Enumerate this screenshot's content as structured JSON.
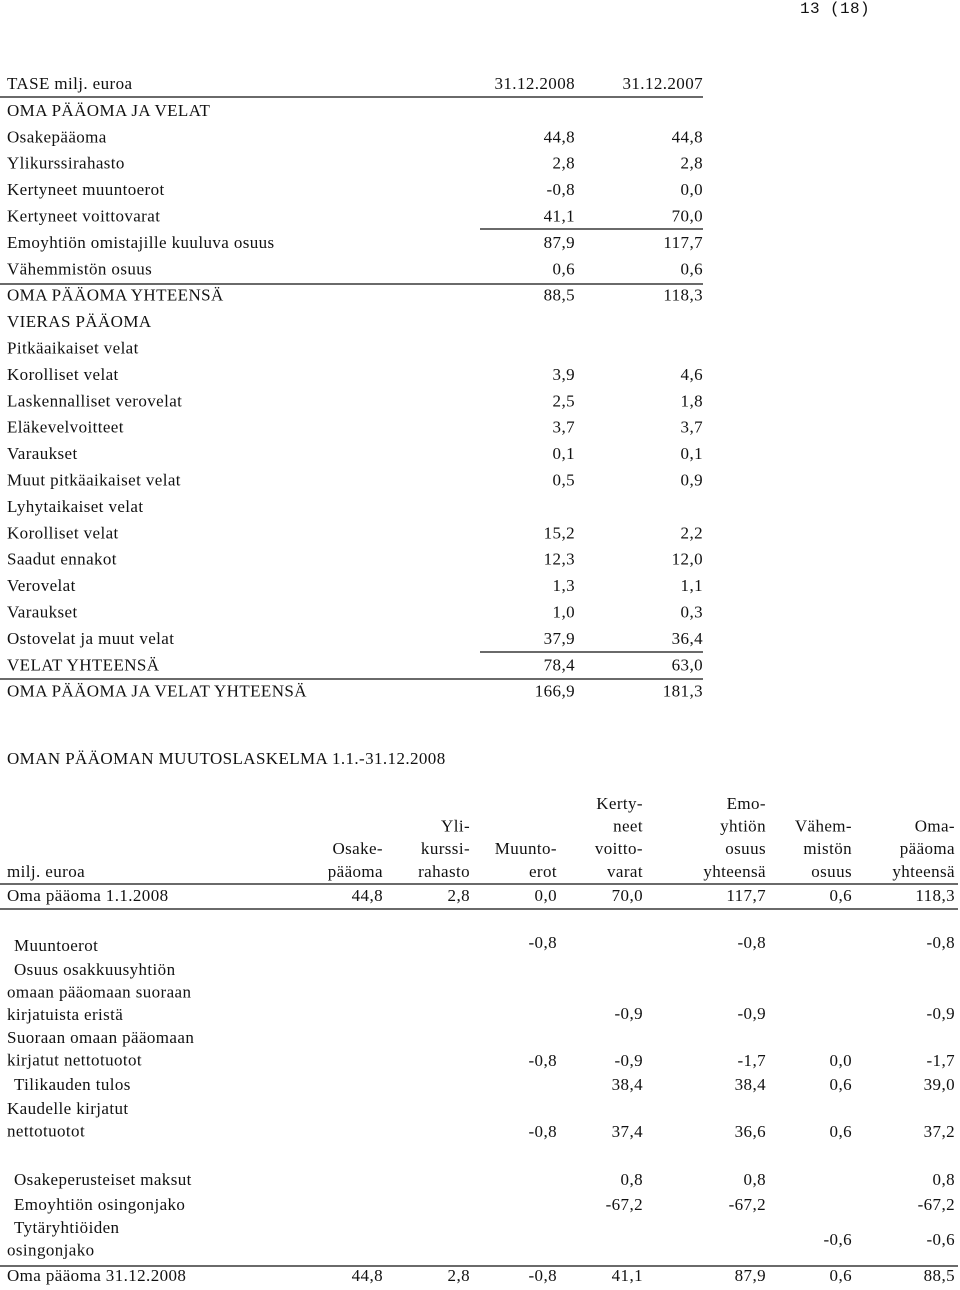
{
  "page_number": "13 (18)",
  "balance": {
    "header": [
      "TASE milj. euroa",
      "31.12.2008",
      "31.12.2007"
    ],
    "rows": [
      [
        "OMA PÄÄOMA JA VELAT",
        null,
        null
      ],
      [
        "Osakepääoma",
        "44,8",
        "44,8"
      ],
      [
        "Ylikurssirahasto",
        "2,8",
        "2,8"
      ],
      [
        "Kertyneet muuntoerot",
        "-0,8",
        "0,0"
      ],
      [
        "Kertyneet voittovarat",
        "41,1",
        "70,0"
      ],
      [
        "Emoyhtiön omistajille kuuluva osuus",
        "87,9",
        "117,7"
      ],
      [
        "Vähemmistön osuus",
        "0,6",
        "0,6"
      ],
      [
        "OMA PÄÄOMA YHTEENSÄ",
        "88,5",
        "118,3"
      ],
      [
        "VIERAS PÄÄOMA",
        null,
        null
      ],
      [
        "Pitkäaikaiset velat",
        null,
        null
      ],
      [
        "Korolliset velat",
        "3,9",
        "4,6"
      ],
      [
        "Laskennalliset verovelat",
        "2,5",
        "1,8"
      ],
      [
        "Eläkevelvoitteet",
        "3,7",
        "3,7"
      ],
      [
        "Varaukset",
        "0,1",
        "0,1"
      ],
      [
        "Muut pitkäaikaiset velat",
        "0,5",
        "0,9"
      ],
      [
        "Lyhytaikaiset velat",
        null,
        null
      ],
      [
        "Korolliset velat",
        "15,2",
        "2,2"
      ],
      [
        "Saadut ennakot",
        "12,3",
        "12,0"
      ],
      [
        "Verovelat",
        "1,3",
        "1,1"
      ],
      [
        "Varaukset",
        "1,0",
        "0,3"
      ],
      [
        "Ostovelat ja muut velat",
        "37,9",
        "36,4"
      ],
      [
        "VELAT YHTEENSÄ",
        "78,4",
        "63,0"
      ],
      [
        "OMA PÄÄOMA JA VELAT YHTEENSÄ",
        "166,9",
        "181,3"
      ]
    ]
  },
  "changes": {
    "title": "OMAN PÄÄOMAN MUUTOSLASKELMA 1.1.-31.12.2008",
    "header": [
      [
        "milj. euroa"
      ],
      [
        "Osake-",
        "pääoma"
      ],
      [
        "Yli-",
        "kurssi-",
        "rahasto"
      ],
      [
        "Muunto-",
        "erot"
      ],
      [
        "Kerty-",
        "neet",
        "voitto-",
        "varat"
      ],
      [
        "Emo-",
        "yhtiön",
        "osuus",
        "yhteensä"
      ],
      [
        "Vähem-",
        "mistön",
        "osuus"
      ],
      [
        "Oma-",
        "pääoma",
        "yhteensä"
      ]
    ],
    "rows": [
      {
        "label": [
          "Oma pääoma 1.1.2008"
        ],
        "values": [
          "44,8",
          "2,8",
          "0,0",
          "70,0",
          "117,7",
          "0,6",
          "118,3"
        ]
      },
      {
        "label": [
          "Muuntoerot"
        ],
        "values": [
          null,
          null,
          "-0,8",
          null,
          "-0,8",
          null,
          "-0,8"
        ]
      },
      {
        "label": [
          "Osuus osakkuusyhtiön",
          "omaan pääomaan suoraan",
          "kirjatuista eristä"
        ],
        "values": [
          null,
          null,
          null,
          "-0,9",
          "-0,9",
          null,
          "-0,9"
        ]
      },
      {
        "label": [
          "Suoraan omaan pääomaan",
          "kirjatut nettotuotot"
        ],
        "values": [
          null,
          null,
          "-0,8",
          "-0,9",
          "-1,7",
          "0,0",
          "-1,7"
        ]
      },
      {
        "label": [
          "Tilikauden tulos"
        ],
        "values": [
          null,
          null,
          null,
          "38,4",
          "38,4",
          "0,6",
          "39,0"
        ]
      },
      {
        "label": [
          "Kaudelle kirjatut",
          "nettotuotot"
        ],
        "values": [
          null,
          null,
          "-0,8",
          "37,4",
          "36,6",
          "0,6",
          "37,2"
        ]
      },
      {
        "label": [
          "Osakeperusteiset maksut"
        ],
        "values": [
          null,
          null,
          null,
          "0,8",
          "0,8",
          null,
          "0,8"
        ]
      },
      {
        "label": [
          "Emoyhtiön osingonjako"
        ],
        "values": [
          null,
          null,
          null,
          "-67,2",
          "-67,2",
          null,
          "-67,2"
        ]
      },
      {
        "label": [
          "Tytäryhtiöiden",
          "osingonjako"
        ],
        "values": [
          null,
          null,
          null,
          null,
          null,
          "-0,6",
          "-0,6"
        ]
      },
      {
        "label": [
          "Oma pääoma 31.12.2008"
        ],
        "values": [
          "44,8",
          "2,8",
          "-0,8",
          "41,1",
          "87,9",
          "0,6",
          "88,5"
        ]
      }
    ]
  }
}
